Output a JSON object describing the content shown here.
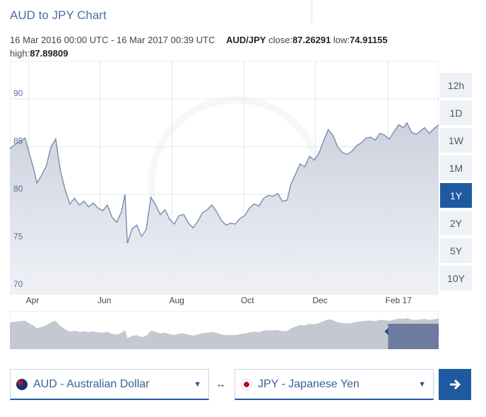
{
  "header": {
    "title": "AUD to JPY Chart"
  },
  "info": {
    "range": "16 Mar 2016 00:00 UTC - 16 Mar 2017 00:39 UTC",
    "pair": "AUD/JPY",
    "close_label": "close:",
    "close_value": "87.26291",
    "low_label": "low:",
    "low_value": "74.91155",
    "high_label": "high:",
    "high_value": "87.89809"
  },
  "ranges": [
    {
      "label": "12h",
      "active": false
    },
    {
      "label": "1D",
      "active": false
    },
    {
      "label": "1W",
      "active": false
    },
    {
      "label": "1M",
      "active": false
    },
    {
      "label": "1Y",
      "active": true
    },
    {
      "label": "2Y",
      "active": false
    },
    {
      "label": "5Y",
      "active": false
    },
    {
      "label": "10Y",
      "active": false
    }
  ],
  "chart_data": {
    "type": "area",
    "title": "AUD to JPY Chart",
    "xlabel": "",
    "ylabel": "",
    "ylim": [
      69.5,
      94
    ],
    "yticks": [
      70,
      75,
      80,
      85,
      90
    ],
    "xlim": [
      "2016-03-16",
      "2017-03-16"
    ],
    "xticks": [
      {
        "label": "Apr",
        "date": "2016-04-01"
      },
      {
        "label": "Jun",
        "date": "2016-06-01"
      },
      {
        "label": "Aug",
        "date": "2016-08-01"
      },
      {
        "label": "Oct",
        "date": "2016-10-01"
      },
      {
        "label": "Dec",
        "date": "2016-12-01"
      },
      {
        "label": "Feb 17",
        "date": "2017-02-01"
      }
    ],
    "grid": true,
    "series": [
      {
        "color": "#7a8bb0",
        "points": [
          [
            "2016-03-16",
            84.8
          ],
          [
            "2016-03-20",
            85.2
          ],
          [
            "2016-03-25",
            85.6
          ],
          [
            "2016-03-29",
            85.9
          ],
          [
            "2016-04-01",
            84.5
          ],
          [
            "2016-04-05",
            82.8
          ],
          [
            "2016-04-08",
            81.2
          ],
          [
            "2016-04-12",
            82.0
          ],
          [
            "2016-04-16",
            83.0
          ],
          [
            "2016-04-20",
            85.0
          ],
          [
            "2016-04-24",
            85.8
          ],
          [
            "2016-04-28",
            82.5
          ],
          [
            "2016-05-02",
            80.5
          ],
          [
            "2016-05-06",
            79.0
          ],
          [
            "2016-05-10",
            79.6
          ],
          [
            "2016-05-14",
            78.9
          ],
          [
            "2016-05-18",
            79.3
          ],
          [
            "2016-05-22",
            78.7
          ],
          [
            "2016-05-26",
            79.1
          ],
          [
            "2016-05-30",
            78.6
          ],
          [
            "2016-06-03",
            78.3
          ],
          [
            "2016-06-07",
            78.9
          ],
          [
            "2016-06-11",
            77.6
          ],
          [
            "2016-06-15",
            77.1
          ],
          [
            "2016-06-19",
            78.2
          ],
          [
            "2016-06-22",
            80.0
          ],
          [
            "2016-06-24",
            74.9
          ],
          [
            "2016-06-28",
            76.4
          ],
          [
            "2016-07-02",
            76.8
          ],
          [
            "2016-07-06",
            75.6
          ],
          [
            "2016-07-10",
            76.3
          ],
          [
            "2016-07-14",
            79.7
          ],
          [
            "2016-07-18",
            78.9
          ],
          [
            "2016-07-22",
            77.9
          ],
          [
            "2016-07-26",
            78.4
          ],
          [
            "2016-07-30",
            77.4
          ],
          [
            "2016-08-03",
            76.9
          ],
          [
            "2016-08-07",
            77.8
          ],
          [
            "2016-08-11",
            77.9
          ],
          [
            "2016-08-15",
            77.0
          ],
          [
            "2016-08-19",
            76.5
          ],
          [
            "2016-08-23",
            77.2
          ],
          [
            "2016-08-27",
            78.1
          ],
          [
            "2016-08-31",
            78.4
          ],
          [
            "2016-09-04",
            78.9
          ],
          [
            "2016-09-08",
            78.2
          ],
          [
            "2016-09-12",
            77.3
          ],
          [
            "2016-09-16",
            76.8
          ],
          [
            "2016-09-20",
            77.0
          ],
          [
            "2016-09-24",
            76.9
          ],
          [
            "2016-09-28",
            77.5
          ],
          [
            "2016-10-02",
            77.8
          ],
          [
            "2016-10-06",
            78.6
          ],
          [
            "2016-10-10",
            79.0
          ],
          [
            "2016-10-14",
            78.8
          ],
          [
            "2016-10-18",
            79.6
          ],
          [
            "2016-10-22",
            79.9
          ],
          [
            "2016-10-26",
            79.8
          ],
          [
            "2016-10-30",
            80.1
          ],
          [
            "2016-11-03",
            79.3
          ],
          [
            "2016-11-07",
            79.4
          ],
          [
            "2016-11-10",
            81.0
          ],
          [
            "2016-11-14",
            82.1
          ],
          [
            "2016-11-18",
            83.2
          ],
          [
            "2016-11-22",
            82.9
          ],
          [
            "2016-11-26",
            84.0
          ],
          [
            "2016-11-30",
            83.6
          ],
          [
            "2016-12-04",
            84.3
          ],
          [
            "2016-12-08",
            85.6
          ],
          [
            "2016-12-12",
            86.8
          ],
          [
            "2016-12-16",
            86.2
          ],
          [
            "2016-12-20",
            85.0
          ],
          [
            "2016-12-24",
            84.4
          ],
          [
            "2016-12-28",
            84.2
          ],
          [
            "2017-01-01",
            84.5
          ],
          [
            "2017-01-05",
            85.1
          ],
          [
            "2017-01-09",
            85.4
          ],
          [
            "2017-01-13",
            85.9
          ],
          [
            "2017-01-17",
            86.0
          ],
          [
            "2017-01-21",
            85.7
          ],
          [
            "2017-01-25",
            86.4
          ],
          [
            "2017-01-29",
            86.2
          ],
          [
            "2017-02-02",
            85.8
          ],
          [
            "2017-02-06",
            86.6
          ],
          [
            "2017-02-10",
            87.3
          ],
          [
            "2017-02-14",
            87.0
          ],
          [
            "2017-02-17",
            87.5
          ],
          [
            "2017-02-21",
            86.5
          ],
          [
            "2017-02-25",
            86.3
          ],
          [
            "2017-03-01",
            86.7
          ],
          [
            "2017-03-04",
            87.0
          ],
          [
            "2017-03-08",
            86.4
          ],
          [
            "2017-03-12",
            86.9
          ],
          [
            "2017-03-16",
            87.3
          ]
        ]
      }
    ]
  },
  "navigator": {
    "window_from": "2017-02-01",
    "window_to": "2017-03-16"
  },
  "converter": {
    "from_label": "AUD - Australian Dollar",
    "to_label": "JPY - Japanese Yen",
    "swap_icon": "↔",
    "go_icon": "🡒"
  }
}
